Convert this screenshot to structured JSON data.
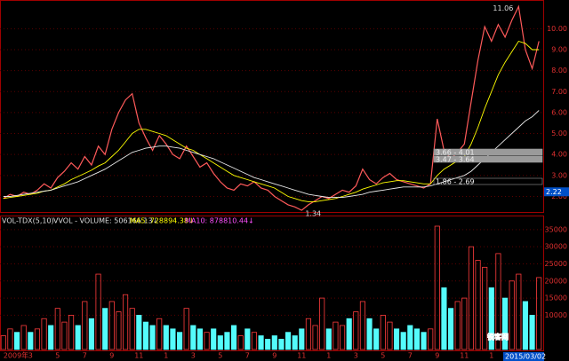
{
  "chart_data": [
    {
      "type": "line",
      "series": [
        {
          "name": "price",
          "color": "#ff5a5a",
          "values": [
            1.9,
            2.1,
            2.0,
            2.2,
            2.1,
            2.3,
            2.6,
            2.4,
            2.9,
            3.2,
            3.6,
            3.3,
            3.9,
            3.5,
            4.4,
            4.0,
            5.2,
            6.0,
            6.6,
            6.9,
            5.5,
            4.8,
            4.2,
            4.9,
            4.5,
            4.0,
            3.8,
            4.4,
            3.9,
            3.4,
            3.6,
            3.1,
            2.7,
            2.4,
            2.3,
            2.6,
            2.5,
            2.7,
            2.4,
            2.3,
            2.0,
            1.8,
            1.6,
            1.5,
            1.34,
            1.6,
            1.8,
            2.0,
            1.9,
            2.1,
            2.3,
            2.2,
            2.5,
            3.3,
            2.8,
            2.6,
            2.9,
            3.1,
            2.8,
            2.7,
            2.6,
            2.5,
            2.4,
            2.6,
            5.7,
            4.2,
            3.8,
            4.1,
            4.5,
            6.5,
            8.5,
            10.1,
            9.4,
            10.2,
            9.6,
            10.4,
            11.06,
            9.0,
            8.1,
            9.4
          ]
        },
        {
          "name": "ma-short",
          "color": "#ffff00",
          "values": [
            1.9,
            1.95,
            2.0,
            2.05,
            2.1,
            2.15,
            2.25,
            2.3,
            2.45,
            2.6,
            2.8,
            2.95,
            3.1,
            3.25,
            3.45,
            3.6,
            3.9,
            4.2,
            4.6,
            5.0,
            5.2,
            5.2,
            5.1,
            5.0,
            4.9,
            4.7,
            4.5,
            4.3,
            4.2,
            4.0,
            3.8,
            3.6,
            3.4,
            3.2,
            3.0,
            2.9,
            2.8,
            2.7,
            2.6,
            2.5,
            2.4,
            2.2,
            2.0,
            1.9,
            1.8,
            1.75,
            1.75,
            1.8,
            1.85,
            1.9,
            2.0,
            2.1,
            2.2,
            2.35,
            2.45,
            2.55,
            2.65,
            2.7,
            2.75,
            2.75,
            2.7,
            2.65,
            2.6,
            2.6,
            3.0,
            3.3,
            3.5,
            3.7,
            3.9,
            4.5,
            5.3,
            6.2,
            7.0,
            7.8,
            8.4,
            8.9,
            9.4,
            9.3,
            9.0,
            9.0
          ]
        },
        {
          "name": "ma-long",
          "color": "#e8e8e8",
          "values": [
            2.0,
            2.0,
            2.05,
            2.1,
            2.15,
            2.2,
            2.25,
            2.3,
            2.4,
            2.5,
            2.6,
            2.7,
            2.85,
            3.0,
            3.15,
            3.3,
            3.5,
            3.7,
            3.9,
            4.1,
            4.2,
            4.3,
            4.35,
            4.4,
            4.4,
            4.35,
            4.3,
            4.2,
            4.1,
            4.0,
            3.9,
            3.8,
            3.65,
            3.5,
            3.35,
            3.2,
            3.05,
            2.9,
            2.8,
            2.7,
            2.6,
            2.5,
            2.4,
            2.3,
            2.2,
            2.1,
            2.05,
            2.0,
            1.95,
            1.95,
            1.95,
            2.0,
            2.05,
            2.1,
            2.2,
            2.25,
            2.3,
            2.35,
            2.4,
            2.45,
            2.45,
            2.45,
            2.45,
            2.5,
            2.6,
            2.7,
            2.8,
            2.9,
            3.0,
            3.2,
            3.5,
            3.8,
            4.1,
            4.4,
            4.7,
            5.0,
            5.3,
            5.6,
            5.8,
            6.1
          ]
        }
      ],
      "ylim": [
        1.3,
        11.2
      ],
      "yticks": [
        {
          "value": 2,
          "label": "2.00"
        },
        {
          "value": 3,
          "label": "3.00"
        },
        {
          "value": 4,
          "label": "4.00"
        },
        {
          "value": 5,
          "label": "5.00"
        },
        {
          "value": 6,
          "label": "6.00"
        },
        {
          "value": 7,
          "label": "7.00"
        },
        {
          "value": 8,
          "label": "8.00"
        },
        {
          "value": 9,
          "label": "9.00"
        },
        {
          "value": 10,
          "label": "10.00"
        }
      ],
      "grid": true,
      "high_label": "11.06",
      "low_label": "1.34",
      "current_price": 2.22,
      "range_labels": [
        "3.66 - 4.01",
        "3.47 - 3.64",
        "1.86 - 2.69"
      ]
    },
    {
      "type": "bar",
      "indicator_labels": [
        "VOL-TDX(5,10)",
        "VVOL - VOLUME: 506166.13↓",
        "MA5: 728894.38↓",
        "MA10: 878810.44↓"
      ],
      "categories": [
        "2009年",
        null,
        null,
        null,
        "3",
        null,
        null,
        null,
        "5",
        null,
        null,
        null,
        "7",
        null,
        null,
        null,
        "9",
        null,
        null,
        null,
        "11",
        null,
        null,
        null,
        "1",
        null,
        null,
        null,
        "3",
        null,
        null,
        null,
        "5",
        null,
        null,
        null,
        "7",
        null,
        null,
        null,
        "9",
        null,
        null,
        null,
        "11",
        null,
        null,
        null,
        "1",
        null,
        null,
        null,
        "3",
        null,
        null,
        null,
        "5",
        null,
        null,
        null,
        "7",
        null,
        null,
        null,
        "9",
        null,
        null,
        null,
        "11",
        null,
        null,
        null,
        "1",
        null,
        null,
        null,
        "3",
        null,
        null,
        null
      ],
      "values": [
        4000,
        6000,
        5000,
        7000,
        5000,
        6000,
        9000,
        7000,
        12000,
        8000,
        10000,
        7000,
        14000,
        9000,
        22000,
        12000,
        14000,
        11000,
        16000,
        12000,
        10000,
        8000,
        7000,
        9000,
        7000,
        6000,
        5000,
        12000,
        7000,
        6000,
        5000,
        6000,
        4000,
        5000,
        7000,
        4000,
        6000,
        5000,
        4000,
        3000,
        4000,
        3000,
        5000,
        4000,
        6000,
        9000,
        7000,
        15000,
        6000,
        8000,
        7000,
        9000,
        11000,
        14000,
        9000,
        6000,
        10000,
        8000,
        6000,
        5000,
        7000,
        6000,
        5000,
        6000,
        36000,
        18000,
        12000,
        14000,
        15000,
        30000,
        26000,
        24000,
        18000,
        28000,
        15000,
        20000,
        22000,
        14000,
        10000,
        21000
      ],
      "up_color": "#ff3c3c",
      "down_color": "#54fcfc",
      "ylim": [
        0,
        36000
      ],
      "yticks": [
        10000,
        15000,
        20000,
        25000,
        30000,
        35000
      ],
      "grid": true,
      "watermark": "锐客网",
      "date_label": "2015/03/02"
    }
  ]
}
